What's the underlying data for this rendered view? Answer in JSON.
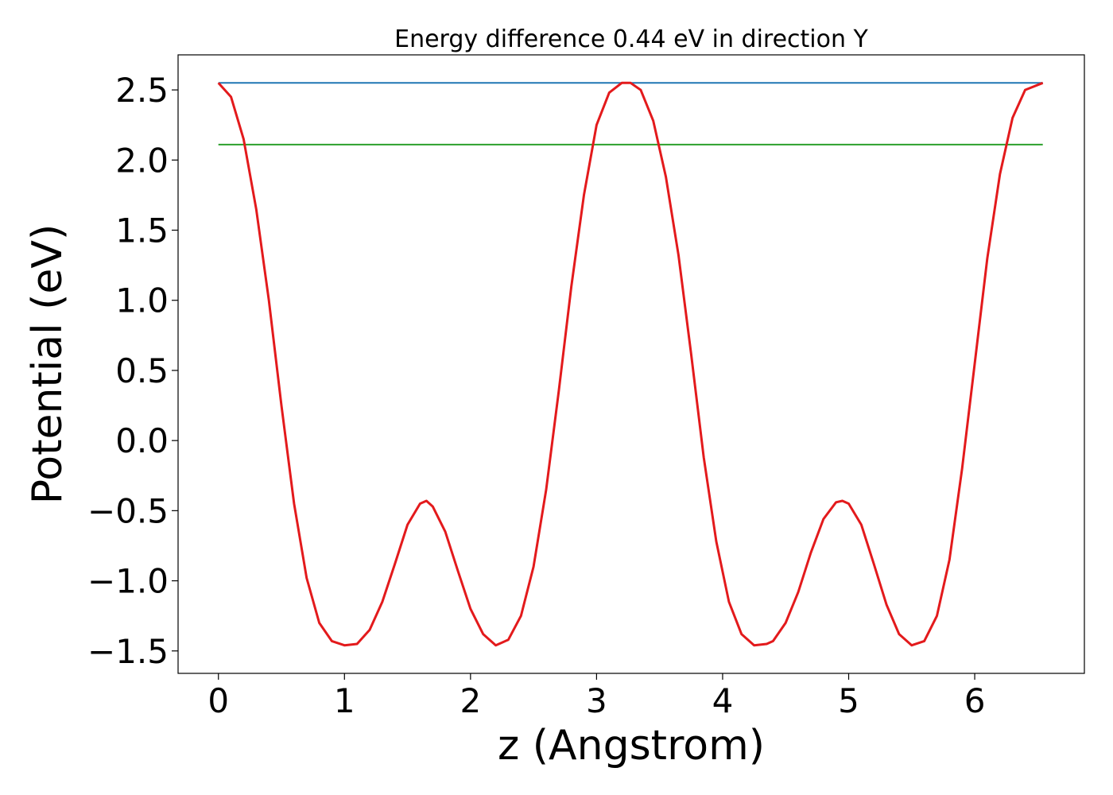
{
  "chart_data": {
    "type": "line",
    "title": "Energy difference 0.44 eV in direction Y",
    "xlabel": "z (Angstrom)",
    "ylabel": "Potential (eV)",
    "xlim": [
      -0.32,
      6.87
    ],
    "ylim": [
      -1.66,
      2.75
    ],
    "xticks": [
      0,
      1,
      2,
      3,
      4,
      5,
      6
    ],
    "xtick_labels": [
      "0",
      "1",
      "2",
      "3",
      "4",
      "5",
      "6"
    ],
    "yticks": [
      -1.5,
      -1.0,
      -0.5,
      0.0,
      0.5,
      1.0,
      1.5,
      2.0,
      2.5
    ],
    "ytick_labels": [
      "−1.5",
      "−1.0",
      "−0.5",
      "0.0",
      "0.5",
      "1.0",
      "1.5",
      "2.0",
      "2.5"
    ],
    "grid": false,
    "series": [
      {
        "color": "#1f77b4",
        "x": [
          0,
          6.54
        ],
        "y": [
          2.55,
          2.55
        ]
      },
      {
        "color": "#2ca02c",
        "x": [
          0,
          6.54
        ],
        "y": [
          2.11,
          2.11
        ]
      },
      {
        "color": "#e31a1c",
        "x": [
          0.0,
          0.1,
          0.2,
          0.3,
          0.4,
          0.5,
          0.6,
          0.7,
          0.8,
          0.9,
          1.0,
          1.1,
          1.2,
          1.3,
          1.4,
          1.5,
          1.6,
          1.65,
          1.7,
          1.8,
          1.9,
          2.0,
          2.1,
          2.2,
          2.3,
          2.4,
          2.5,
          2.6,
          2.7,
          2.8,
          2.9,
          3.0,
          3.1,
          3.2,
          3.27,
          3.35,
          3.45,
          3.55,
          3.65,
          3.75,
          3.85,
          3.95,
          4.05,
          4.15,
          4.25,
          4.35,
          4.4,
          4.5,
          4.6,
          4.7,
          4.8,
          4.9,
          4.95,
          5.0,
          5.1,
          5.2,
          5.3,
          5.4,
          5.5,
          5.6,
          5.7,
          5.8,
          5.9,
          6.0,
          6.1,
          6.2,
          6.3,
          6.4,
          6.54
        ],
        "y": [
          2.55,
          2.45,
          2.15,
          1.65,
          1.0,
          0.25,
          -0.45,
          -0.98,
          -1.3,
          -1.43,
          -1.46,
          -1.45,
          -1.35,
          -1.15,
          -0.88,
          -0.6,
          -0.45,
          -0.43,
          -0.47,
          -0.65,
          -0.93,
          -1.2,
          -1.38,
          -1.46,
          -1.42,
          -1.25,
          -0.9,
          -0.35,
          0.35,
          1.1,
          1.75,
          2.25,
          2.48,
          2.55,
          2.55,
          2.5,
          2.28,
          1.88,
          1.32,
          0.62,
          -0.12,
          -0.72,
          -1.15,
          -1.38,
          -1.46,
          -1.45,
          -1.43,
          -1.3,
          -1.08,
          -0.8,
          -0.56,
          -0.44,
          -0.43,
          -0.45,
          -0.6,
          -0.88,
          -1.17,
          -1.38,
          -1.46,
          -1.43,
          -1.25,
          -0.85,
          -0.2,
          0.55,
          1.3,
          1.9,
          2.3,
          2.5,
          2.55
        ]
      }
    ]
  }
}
